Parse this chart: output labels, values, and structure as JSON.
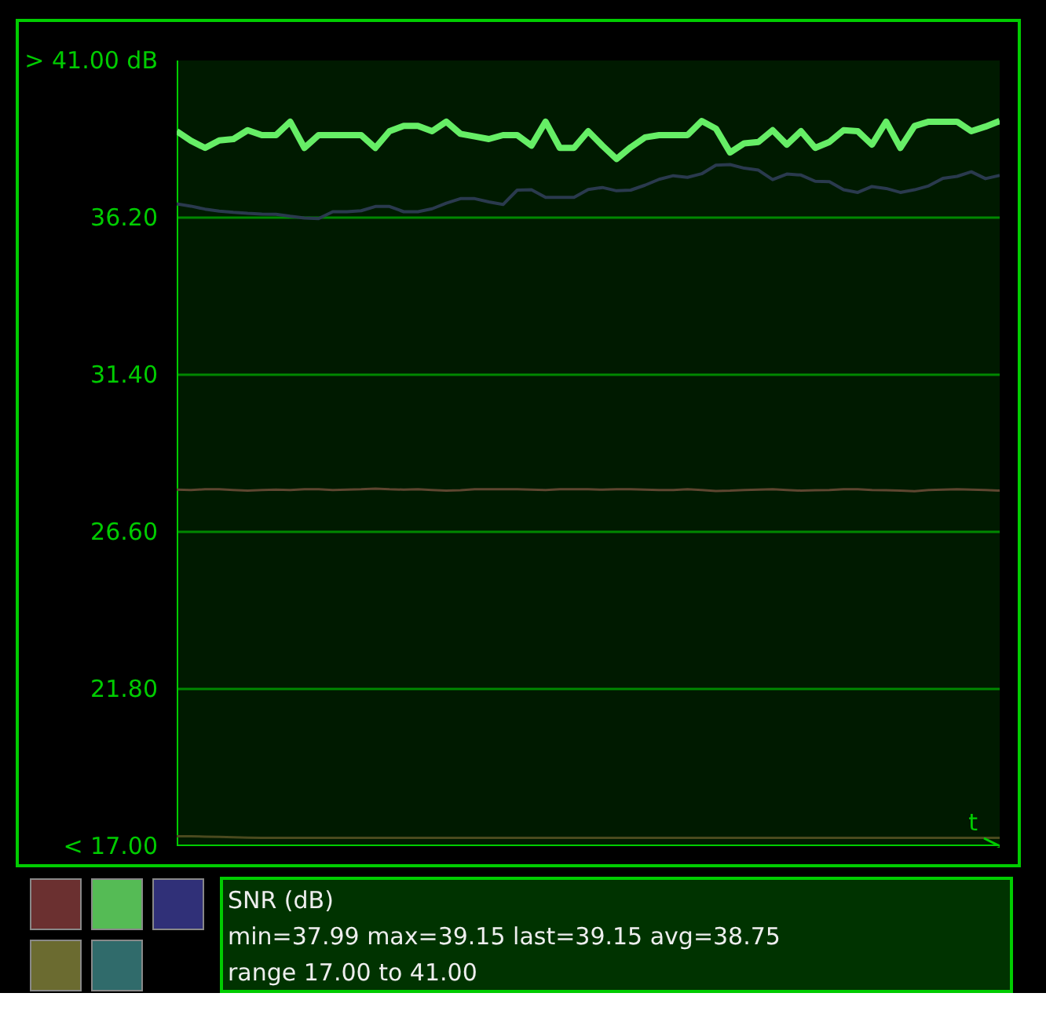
{
  "chart_data": {
    "type": "line",
    "title": "SNR (dB)",
    "xlabel": "t",
    "categories": [
      null,
      null,
      null,
      null,
      null,
      null,
      null,
      null,
      null,
      null,
      null,
      null,
      null,
      null,
      null,
      null,
      null,
      null,
      null,
      null,
      null,
      null,
      null,
      null,
      null,
      null,
      null,
      null,
      null,
      null,
      null,
      null,
      null,
      null,
      null,
      null,
      null,
      null,
      null,
      null,
      null,
      null,
      null,
      null,
      null,
      null,
      null,
      null,
      null,
      null,
      null,
      null,
      null,
      null,
      null,
      null,
      null,
      null,
      null
    ],
    "series": [
      {
        "color": "#66ee66",
        "values": [
          38.84,
          38.55,
          38.33,
          38.56,
          38.6,
          38.87,
          38.72,
          38.72,
          39.13,
          38.33,
          38.72,
          38.72,
          38.72,
          38.72,
          38.33,
          38.84,
          39.0,
          39.0,
          38.84,
          39.13,
          38.76,
          38.68,
          38.6,
          38.72,
          38.72,
          38.4,
          39.13,
          38.33,
          38.33,
          38.84,
          38.4,
          37.99,
          38.35,
          38.65,
          38.72,
          38.72,
          38.72,
          39.15,
          38.92,
          38.19,
          38.47,
          38.51,
          38.87,
          38.43,
          38.84,
          38.33,
          38.51,
          38.87,
          38.84,
          38.43,
          39.13,
          38.33,
          39.0,
          39.13,
          39.13,
          39.13,
          38.84,
          38.98,
          39.15
        ]
      },
      {
        "color": "#2a3a4e",
        "values": [
          36.62,
          36.55,
          36.46,
          36.4,
          36.36,
          36.33,
          36.31,
          36.3,
          36.24,
          36.19,
          36.17,
          36.38,
          36.38,
          36.41,
          36.54,
          36.54,
          36.38,
          36.38,
          36.47,
          36.64,
          36.78,
          36.78,
          36.68,
          36.6,
          37.04,
          37.05,
          36.82,
          36.82,
          36.82,
          37.06,
          37.12,
          37.02,
          37.04,
          37.19,
          37.37,
          37.48,
          37.43,
          37.54,
          37.8,
          37.82,
          37.71,
          37.65,
          37.36,
          37.53,
          37.5,
          37.31,
          37.3,
          37.05,
          36.97,
          37.15,
          37.09,
          36.97,
          37.05,
          37.17,
          37.4,
          37.46,
          37.6,
          37.39,
          37.49
        ]
      },
      {
        "color": "#5e4630",
        "values": [
          27.89,
          27.88,
          27.9,
          27.9,
          27.88,
          27.86,
          27.88,
          27.89,
          27.88,
          27.9,
          27.9,
          27.88,
          27.89,
          27.9,
          27.92,
          27.9,
          27.89,
          27.9,
          27.88,
          27.86,
          27.87,
          27.9,
          27.9,
          27.9,
          27.9,
          27.89,
          27.88,
          27.9,
          27.9,
          27.9,
          27.89,
          27.9,
          27.9,
          27.89,
          27.88,
          27.88,
          27.9,
          27.88,
          27.85,
          27.86,
          27.88,
          27.89,
          27.9,
          27.88,
          27.86,
          27.87,
          27.88,
          27.9,
          27.9,
          27.88,
          27.87,
          27.86,
          27.84,
          27.88,
          27.89,
          27.9,
          27.89,
          27.88,
          27.86
        ]
      },
      {
        "color": "#4a4a1e",
        "values": [
          17.3,
          17.3,
          17.29,
          17.28,
          17.27,
          17.26,
          17.25,
          17.25,
          17.25,
          17.25,
          17.25,
          17.25,
          17.25,
          17.25,
          17.25,
          17.25,
          17.25,
          17.25,
          17.25,
          17.25,
          17.25,
          17.25,
          17.25,
          17.25,
          17.25,
          17.25,
          17.25,
          17.25,
          17.25,
          17.25,
          17.25,
          17.25,
          17.25,
          17.25,
          17.25,
          17.25,
          17.25,
          17.25,
          17.25,
          17.25,
          17.25,
          17.25,
          17.25,
          17.25,
          17.25,
          17.25,
          17.25,
          17.25,
          17.25,
          17.25,
          17.25,
          17.25,
          17.25,
          17.25,
          17.25,
          17.25,
          17.25,
          17.25,
          17.25
        ]
      }
    ],
    "ylim": [
      17,
      41
    ],
    "yticks": [
      {
        "value": 41,
        "label": "> 41.00 dB"
      },
      {
        "value": 36.2,
        "label": "36.20"
      },
      {
        "value": 31.4,
        "label": "31.40"
      },
      {
        "value": 26.6,
        "label": "26.60"
      },
      {
        "value": 21.8,
        "label": "21.80"
      },
      {
        "value": 17,
        "label": "< 17.00"
      }
    ],
    "grid": "y",
    "annotations": [
      "min=37.99 max=39.15 last=39.15 avg=38.75",
      "range 17.00 to 41.00"
    ]
  }
}
